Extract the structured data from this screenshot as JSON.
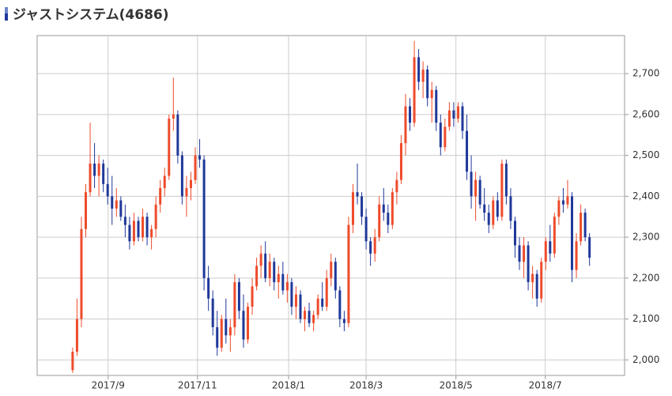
{
  "chart_data": {
    "type": "candlestick",
    "title": "ジャストシステム(4686)",
    "up_color": "#ee4b2b",
    "down_color": "#1f3899",
    "grid": true,
    "ylim": [
      1962,
      2793
    ],
    "yticks": [
      {
        "value": 2000,
        "label": "2,000"
      },
      {
        "value": 2100,
        "label": "2,100"
      },
      {
        "value": 2200,
        "label": "2,200"
      },
      {
        "value": 2300,
        "label": "2,300"
      },
      {
        "value": 2400,
        "label": "2,400"
      },
      {
        "value": 2500,
        "label": "2,500"
      },
      {
        "value": 2600,
        "label": "2,600"
      },
      {
        "value": 2700,
        "label": "2,700"
      }
    ],
    "xlim": [
      -8.1,
      126
    ],
    "xticks": [
      {
        "value": 8.1,
        "label": "2017/9"
      },
      {
        "value": 28.5,
        "label": "2017/11"
      },
      {
        "value": 49.3,
        "label": "2018/1"
      },
      {
        "value": 67,
        "label": "2018/3"
      },
      {
        "value": 87.5,
        "label": "2018/5"
      },
      {
        "value": 107.9,
        "label": "2018/7"
      }
    ],
    "ohlc": [
      [
        1975,
        2030,
        1968,
        2020
      ],
      [
        2020,
        2150,
        2010,
        2100
      ],
      [
        2100,
        2350,
        2080,
        2320
      ],
      [
        2320,
        2430,
        2300,
        2410
      ],
      [
        2410,
        2580,
        2400,
        2480
      ],
      [
        2480,
        2530,
        2420,
        2450
      ],
      [
        2450,
        2500,
        2400,
        2480
      ],
      [
        2480,
        2490,
        2410,
        2430
      ],
      [
        2430,
        2470,
        2380,
        2400
      ],
      [
        2400,
        2450,
        2330,
        2370
      ],
      [
        2370,
        2420,
        2350,
        2390
      ],
      [
        2390,
        2400,
        2340,
        2350
      ],
      [
        2350,
        2380,
        2300,
        2330
      ],
      [
        2330,
        2350,
        2270,
        2290
      ],
      [
        2290,
        2360,
        2280,
        2340
      ],
      [
        2340,
        2350,
        2290,
        2300
      ],
      [
        2300,
        2370,
        2290,
        2350
      ],
      [
        2350,
        2360,
        2280,
        2300
      ],
      [
        2300,
        2330,
        2270,
        2320
      ],
      [
        2320,
        2400,
        2300,
        2380
      ],
      [
        2380,
        2440,
        2360,
        2420
      ],
      [
        2420,
        2470,
        2400,
        2450
      ],
      [
        2450,
        2600,
        2440,
        2590
      ],
      [
        2590,
        2690,
        2560,
        2600
      ],
      [
        2600,
        2610,
        2480,
        2500
      ],
      [
        2500,
        2510,
        2380,
        2400
      ],
      [
        2400,
        2450,
        2350,
        2420
      ],
      [
        2420,
        2460,
        2390,
        2440
      ],
      [
        2440,
        2520,
        2430,
        2500
      ],
      [
        2500,
        2540,
        2470,
        2490
      ],
      [
        2490,
        2500,
        2170,
        2200
      ],
      [
        2200,
        2230,
        2120,
        2150
      ],
      [
        2150,
        2170,
        2060,
        2080
      ],
      [
        2080,
        2120,
        2010,
        2030
      ],
      [
        2030,
        2110,
        2020,
        2100
      ],
      [
        2100,
        2150,
        2040,
        2060
      ],
      [
        2060,
        2100,
        2020,
        2080
      ],
      [
        2080,
        2210,
        2060,
        2190
      ],
      [
        2190,
        2200,
        2100,
        2120
      ],
      [
        2120,
        2160,
        2030,
        2050
      ],
      [
        2050,
        2140,
        2040,
        2130
      ],
      [
        2130,
        2200,
        2110,
        2180
      ],
      [
        2180,
        2250,
        2170,
        2230
      ],
      [
        2230,
        2280,
        2200,
        2260
      ],
      [
        2260,
        2290,
        2190,
        2200
      ],
      [
        2200,
        2260,
        2180,
        2240
      ],
      [
        2240,
        2250,
        2170,
        2190
      ],
      [
        2190,
        2230,
        2150,
        2210
      ],
      [
        2210,
        2240,
        2160,
        2170
      ],
      [
        2170,
        2210,
        2140,
        2190
      ],
      [
        2190,
        2200,
        2110,
        2130
      ],
      [
        2130,
        2180,
        2100,
        2160
      ],
      [
        2160,
        2170,
        2090,
        2100
      ],
      [
        2100,
        2130,
        2070,
        2120
      ],
      [
        2120,
        2140,
        2080,
        2090
      ],
      [
        2090,
        2120,
        2070,
        2110
      ],
      [
        2110,
        2160,
        2100,
        2150
      ],
      [
        2150,
        2190,
        2120,
        2130
      ],
      [
        2130,
        2220,
        2120,
        2200
      ],
      [
        2200,
        2260,
        2180,
        2240
      ],
      [
        2240,
        2250,
        2150,
        2170
      ],
      [
        2170,
        2180,
        2080,
        2100
      ],
      [
        2100,
        2120,
        2070,
        2090
      ],
      [
        2090,
        2350,
        2080,
        2330
      ],
      [
        2330,
        2430,
        2310,
        2410
      ],
      [
        2410,
        2480,
        2380,
        2400
      ],
      [
        2400,
        2410,
        2330,
        2350
      ],
      [
        2350,
        2370,
        2270,
        2290
      ],
      [
        2290,
        2300,
        2230,
        2260
      ],
      [
        2260,
        2320,
        2240,
        2300
      ],
      [
        2300,
        2400,
        2290,
        2380
      ],
      [
        2380,
        2420,
        2340,
        2360
      ],
      [
        2360,
        2380,
        2310,
        2330
      ],
      [
        2330,
        2420,
        2320,
        2410
      ],
      [
        2410,
        2460,
        2380,
        2440
      ],
      [
        2440,
        2550,
        2430,
        2530
      ],
      [
        2530,
        2650,
        2500,
        2620
      ],
      [
        2620,
        2640,
        2560,
        2580
      ],
      [
        2580,
        2780,
        2570,
        2740
      ],
      [
        2740,
        2760,
        2660,
        2680
      ],
      [
        2680,
        2730,
        2640,
        2710
      ],
      [
        2710,
        2720,
        2620,
        2640
      ],
      [
        2640,
        2680,
        2580,
        2660
      ],
      [
        2660,
        2670,
        2560,
        2580
      ],
      [
        2580,
        2600,
        2500,
        2520
      ],
      [
        2520,
        2590,
        2510,
        2570
      ],
      [
        2570,
        2630,
        2560,
        2610
      ],
      [
        2610,
        2630,
        2570,
        2590
      ],
      [
        2590,
        2630,
        2580,
        2620
      ],
      [
        2620,
        2630,
        2540,
        2560
      ],
      [
        2560,
        2600,
        2440,
        2460
      ],
      [
        2460,
        2500,
        2370,
        2400
      ],
      [
        2400,
        2460,
        2340,
        2440
      ],
      [
        2440,
        2450,
        2370,
        2380
      ],
      [
        2380,
        2420,
        2340,
        2360
      ],
      [
        2360,
        2380,
        2310,
        2330
      ],
      [
        2330,
        2400,
        2320,
        2390
      ],
      [
        2390,
        2410,
        2340,
        2350
      ],
      [
        2350,
        2490,
        2340,
        2480
      ],
      [
        2480,
        2490,
        2380,
        2400
      ],
      [
        2400,
        2420,
        2320,
        2340
      ],
      [
        2340,
        2350,
        2250,
        2280
      ],
      [
        2280,
        2300,
        2220,
        2240
      ],
      [
        2240,
        2300,
        2200,
        2280
      ],
      [
        2280,
        2290,
        2170,
        2190
      ],
      [
        2190,
        2230,
        2150,
        2210
      ],
      [
        2210,
        2220,
        2130,
        2150
      ],
      [
        2150,
        2250,
        2140,
        2240
      ],
      [
        2240,
        2300,
        2220,
        2290
      ],
      [
        2290,
        2330,
        2240,
        2260
      ],
      [
        2260,
        2360,
        2250,
        2350
      ],
      [
        2350,
        2400,
        2330,
        2390
      ],
      [
        2390,
        2420,
        2360,
        2380
      ],
      [
        2380,
        2440,
        2370,
        2400
      ],
      [
        2400,
        2410,
        2190,
        2220
      ],
      [
        2220,
        2310,
        2200,
        2290
      ],
      [
        2290,
        2380,
        2280,
        2360
      ],
      [
        2360,
        2370,
        2290,
        2300
      ],
      [
        2300,
        2310,
        2230,
        2250
      ]
    ]
  }
}
